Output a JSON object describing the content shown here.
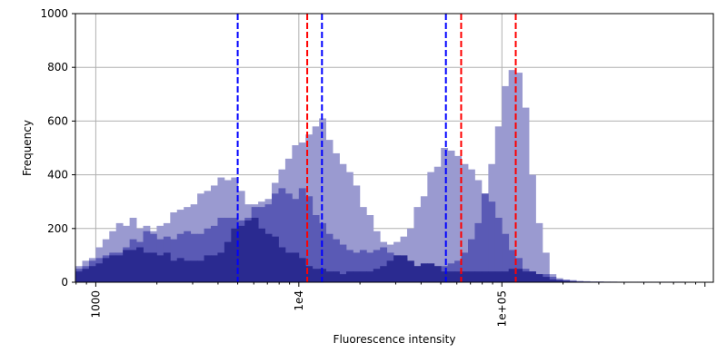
{
  "chart_data": {
    "type": "histogram",
    "xscale": "log",
    "xlabel": "Fluorescence intensity",
    "ylabel": "Frequency",
    "xlim": [
      794,
      1100000
    ],
    "ylim": [
      0,
      1000
    ],
    "grid": true,
    "x_ticks": [
      {
        "value": 1000,
        "label": "1000"
      },
      {
        "value": 10000,
        "label": "1e4"
      },
      {
        "value": 100000,
        "label": "1e+05"
      }
    ],
    "y_ticks": [
      {
        "value": 0,
        "label": "0"
      },
      {
        "value": 200,
        "label": "200"
      },
      {
        "value": 400,
        "label": "400"
      },
      {
        "value": 600,
        "label": "600"
      },
      {
        "value": 800,
        "label": "800"
      },
      {
        "value": 1000,
        "label": "1000"
      }
    ],
    "bin_log10_start": 2.9,
    "bin_log10_width": 0.03333,
    "series": [
      {
        "color": "#9a9ad0",
        "values": [
          60,
          80,
          90,
          130,
          160,
          190,
          220,
          210,
          240,
          200,
          210,
          190,
          210,
          220,
          260,
          270,
          280,
          290,
          330,
          340,
          360,
          390,
          380,
          390,
          340,
          290,
          290,
          300,
          310,
          370,
          420,
          460,
          510,
          520,
          550,
          580,
          610,
          530,
          480,
          440,
          410,
          360,
          280,
          250,
          190,
          150,
          140,
          150,
          170,
          200,
          280,
          320,
          410,
          430,
          500,
          490,
          470,
          440,
          420,
          380,
          330,
          440,
          580,
          730,
          790,
          780,
          650,
          400,
          220,
          110,
          30,
          15,
          10,
          8,
          5,
          4,
          3,
          3,
          2,
          2,
          2,
          2,
          2,
          2,
          2,
          2,
          2,
          2,
          2,
          2,
          1,
          1,
          1,
          1,
          1,
          1,
          1,
          1,
          1,
          1,
          1,
          1
        ]
      },
      {
        "color": "#5a5ab5",
        "values": [
          50,
          60,
          80,
          90,
          100,
          110,
          110,
          130,
          160,
          150,
          190,
          180,
          160,
          170,
          160,
          180,
          190,
          180,
          180,
          200,
          210,
          240,
          240,
          240,
          230,
          240,
          280,
          280,
          290,
          330,
          350,
          330,
          310,
          350,
          320,
          250,
          220,
          180,
          160,
          140,
          120,
          110,
          120,
          110,
          120,
          130,
          110,
          100,
          90,
          70,
          60,
          60,
          60,
          60,
          60,
          70,
          80,
          110,
          160,
          220,
          330,
          300,
          240,
          180,
          120,
          90,
          50,
          40,
          30,
          30,
          20,
          10,
          8,
          5,
          3,
          2,
          2,
          2,
          2,
          2,
          1,
          1,
          1,
          1,
          1,
          1,
          1,
          1,
          1,
          1,
          1,
          1,
          1,
          1,
          1,
          1,
          1,
          1,
          1,
          1,
          1,
          1
        ]
      },
      {
        "color": "#2a2a90",
        "values": [
          40,
          50,
          60,
          70,
          90,
          100,
          100,
          120,
          120,
          130,
          110,
          110,
          100,
          110,
          80,
          90,
          80,
          80,
          80,
          100,
          100,
          110,
          150,
          200,
          210,
          230,
          240,
          200,
          180,
          170,
          130,
          110,
          110,
          90,
          60,
          50,
          50,
          40,
          40,
          30,
          40,
          40,
          40,
          40,
          50,
          60,
          80,
          100,
          100,
          80,
          60,
          70,
          70,
          60,
          40,
          40,
          40,
          40,
          40,
          40,
          40,
          40,
          40,
          40,
          50,
          50,
          40,
          40,
          30,
          20,
          10,
          8,
          5,
          3,
          2,
          2,
          1,
          1,
          1,
          1,
          1,
          1,
          1,
          1,
          1,
          1,
          1,
          1,
          1,
          1,
          1,
          1,
          1,
          1,
          1,
          1,
          1,
          1,
          1,
          1,
          1,
          1
        ]
      }
    ],
    "vlines": [
      {
        "x": 5000,
        "color": "#0000ff",
        "style": "dashed"
      },
      {
        "x": 13000,
        "color": "#0000ff",
        "style": "dashed"
      },
      {
        "x": 53000,
        "color": "#0000ff",
        "style": "dashed"
      },
      {
        "x": 11000,
        "color": "#ff0000",
        "style": "dashed"
      },
      {
        "x": 63000,
        "color": "#ff0000",
        "style": "dashed"
      },
      {
        "x": 117000,
        "color": "#ff0000",
        "style": "dashed"
      }
    ]
  }
}
